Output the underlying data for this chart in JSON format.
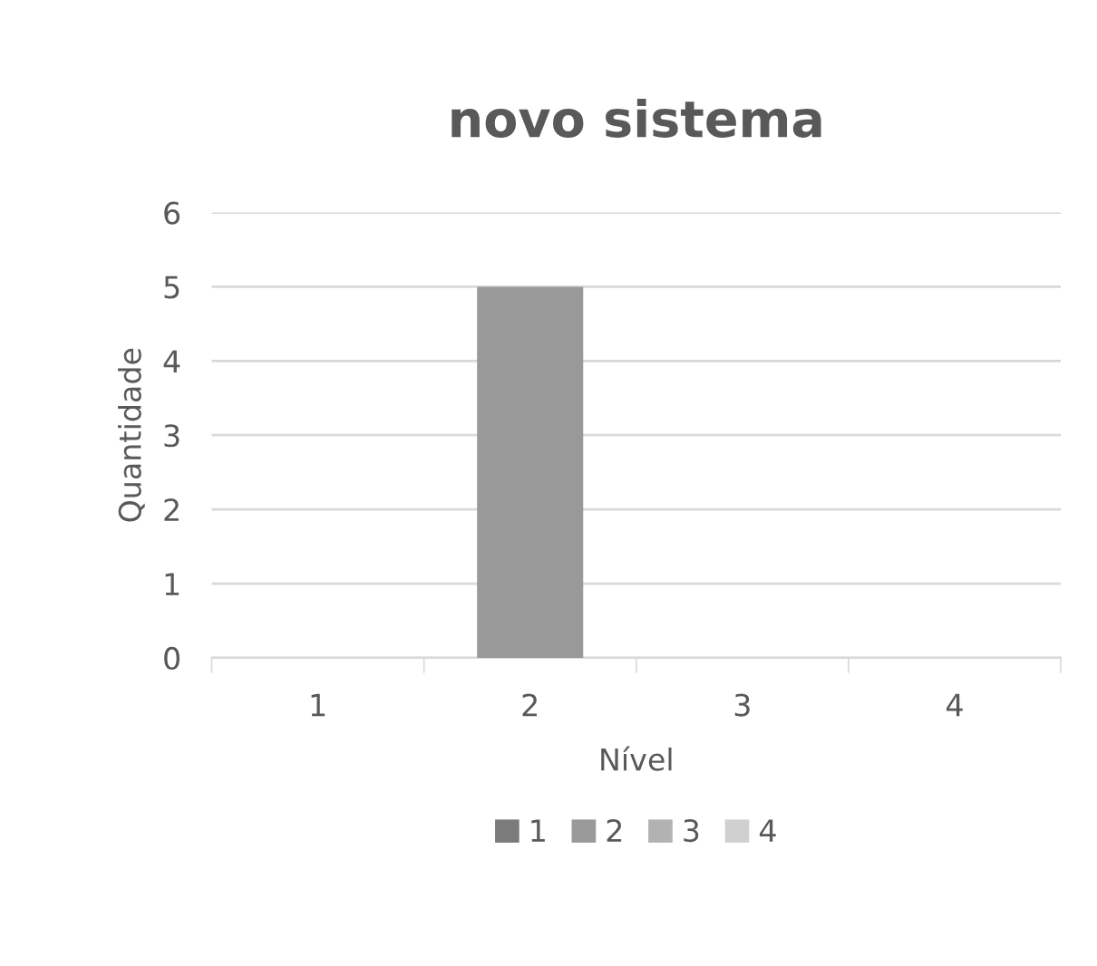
{
  "chart_data": {
    "type": "bar",
    "stacked": true,
    "title": "novo sistema",
    "xlabel": "Nível",
    "ylabel": "Quantidade",
    "categories": [
      "1",
      "2",
      "3",
      "4"
    ],
    "series": [
      {
        "name": "1",
        "color": "#7b7b7b",
        "values": [
          0,
          0,
          0,
          0
        ]
      },
      {
        "name": "2",
        "color": "#999999",
        "values": [
          0,
          5,
          0,
          0
        ]
      },
      {
        "name": "3",
        "color": "#b2b2b2",
        "values": [
          0,
          0,
          0,
          0
        ]
      },
      {
        "name": "4",
        "color": "#d0d0d0",
        "values": [
          0,
          0,
          0,
          0
        ]
      }
    ],
    "ylim": [
      0,
      6
    ],
    "yticks": [
      0,
      1,
      2,
      3,
      4,
      5,
      6
    ],
    "grid": "y",
    "legend": "bottom"
  }
}
